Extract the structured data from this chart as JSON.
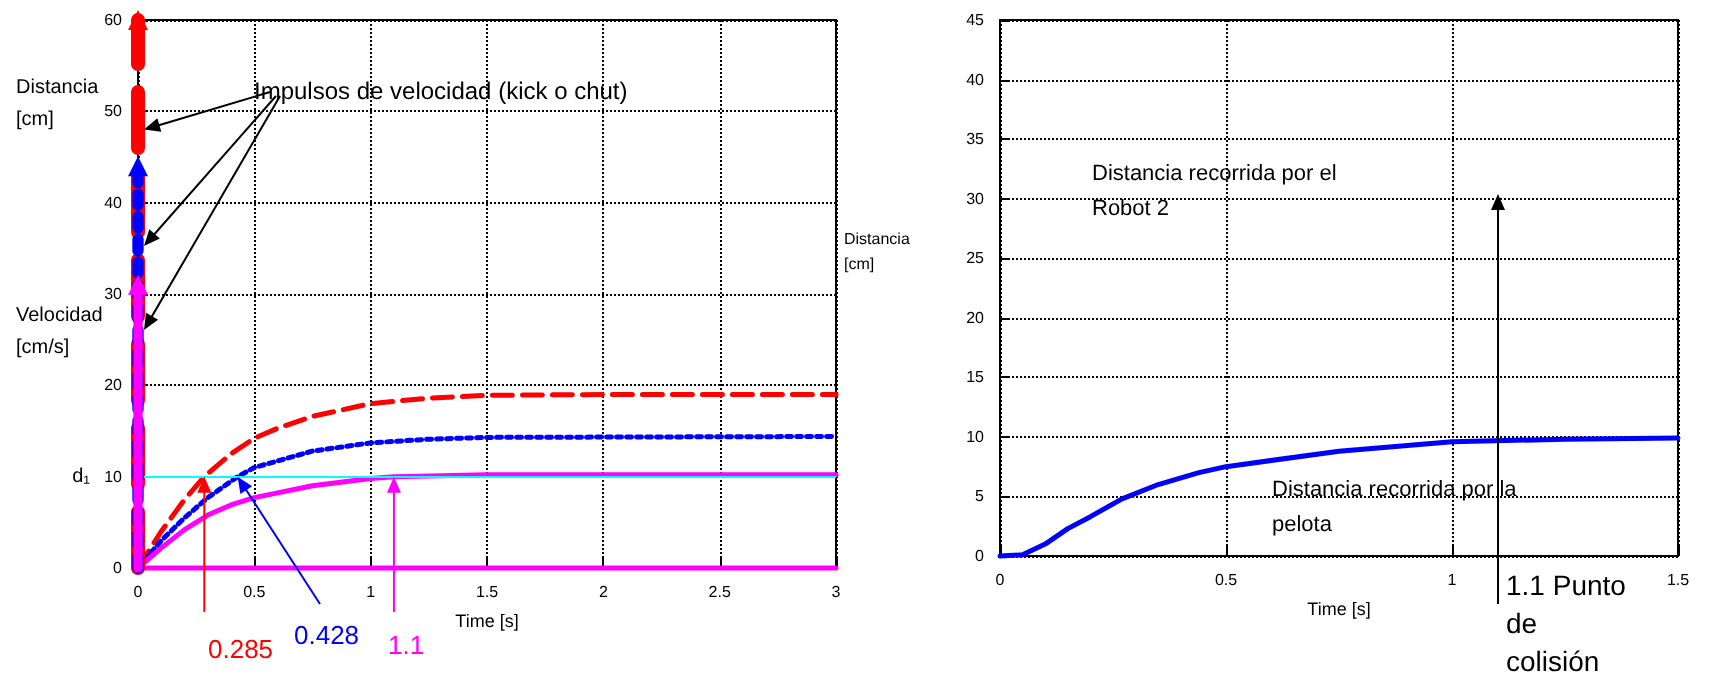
{
  "chart_data": [
    {
      "type": "line",
      "xlabel": "Time [s]",
      "ylabel": "Distancia [cm]",
      "xlim": [
        0,
        3
      ],
      "xticks": [
        0,
        0.5,
        1,
        1.5,
        2,
        2.5,
        3
      ],
      "ylim": [
        0,
        60
      ],
      "yticks": [
        0,
        10,
        20,
        30,
        40,
        50,
        60
      ],
      "grid": true,
      "series": [
        {
          "color": "#ff0000",
          "line_style": "dashed",
          "marker": "none",
          "x": [
            0,
            0.1,
            0.2,
            0.285,
            0.4,
            0.5,
            0.6,
            0.75,
            1,
            1.25,
            1.5,
            2,
            3
          ],
          "values": [
            0,
            4,
            7.5,
            10,
            12.5,
            14.2,
            15.3,
            16.6,
            18,
            18.6,
            18.9,
            19,
            19
          ]
        },
        {
          "color": "#0000ff",
          "line_style": "dotted",
          "marker": "none",
          "x": [
            0,
            0.1,
            0.2,
            0.3,
            0.428,
            0.5,
            0.75,
            1,
            1.25,
            1.5,
            3
          ],
          "values": [
            0,
            3,
            5.5,
            7.7,
            10,
            11,
            12.8,
            13.7,
            14.1,
            14.3,
            14.4
          ]
        },
        {
          "color": "#ff00ff",
          "line_style": "solid",
          "marker": "none",
          "x": [
            0,
            0.1,
            0.2,
            0.3,
            0.4,
            0.5,
            0.75,
            1,
            1.1,
            1.5,
            3
          ],
          "values": [
            0,
            2.2,
            4.2,
            5.8,
            6.9,
            7.7,
            9,
            9.8,
            10,
            10.2,
            10.2
          ]
        },
        {
          "color": "#ff0000",
          "line_style": "dashed",
          "marker": "triangle",
          "x": [
            0,
            0
          ],
          "values": [
            0,
            60
          ]
        },
        {
          "color": "#0000ff",
          "line_style": "dotted",
          "marker": "triangle",
          "x": [
            0,
            0
          ],
          "values": [
            0,
            44
          ]
        },
        {
          "color": "#ff00ff",
          "line_style": "solid",
          "marker": "triangle",
          "x": [
            0,
            0
          ],
          "values": [
            0,
            31
          ]
        },
        {
          "color": "#ff00ff",
          "line_style": "solid",
          "marker": "none",
          "x": [
            0,
            3
          ],
          "values": [
            0,
            0
          ]
        }
      ],
      "ref_lines": [
        {
          "axis": "y",
          "value": 10,
          "label": "d₁",
          "color": "#00ffff"
        }
      ],
      "annotations": [
        {
          "text": "Impulsos de velocidad (kick o chut)",
          "x": 0,
          "y": 48
        },
        "Velocidad [cm/s]",
        {
          "text": "0.285",
          "x": 0.285,
          "y": 10
        },
        {
          "text": "0.428",
          "x": 0.428,
          "y": 10
        },
        {
          "text": "1.1",
          "x": 1.1,
          "y": 10
        }
      ]
    },
    {
      "type": "line",
      "xlabel": "Time [s]",
      "ylabel": "Distancia [cm]",
      "xlim": [
        0,
        1.5
      ],
      "xticks": [
        0,
        0.5,
        1,
        1.5
      ],
      "ylim": [
        0,
        45
      ],
      "yticks": [
        0,
        5,
        10,
        15,
        20,
        25,
        30,
        35,
        40,
        45
      ],
      "grid": true,
      "series": [
        {
          "color": "#0000ff",
          "line_style": "solid",
          "marker": "none",
          "x": [
            0,
            0.05,
            0.1,
            0.15,
            0.2,
            0.27,
            0.35,
            0.44,
            0.5,
            0.75,
            1,
            1.25,
            1.5
          ],
          "values": [
            0,
            0.1,
            1,
            2.3,
            3.3,
            4.8,
            6,
            7,
            7.5,
            8.8,
            9.6,
            9.8,
            9.9
          ]
        }
      ],
      "annotations": [
        "Distancia recorrida por el Robot 2",
        "Distancia recorrida por la pelota",
        "1.1 Punto de colisión"
      ]
    }
  ]
}
